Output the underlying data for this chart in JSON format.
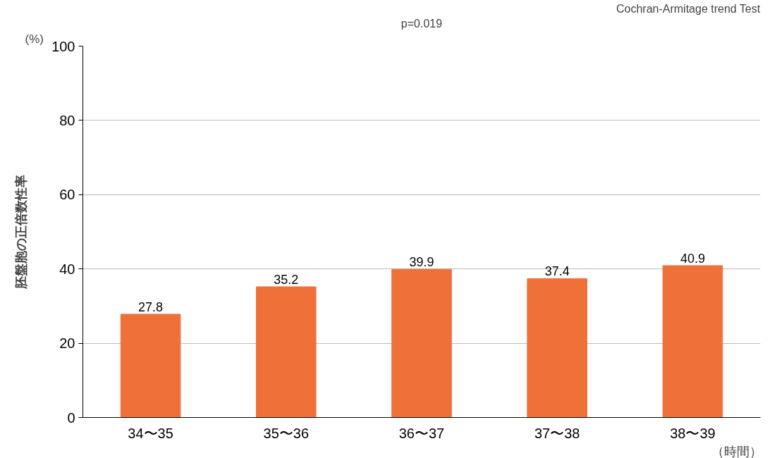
{
  "chart_data": {
    "type": "bar",
    "categories": [
      "34〜35",
      "35〜36",
      "36〜37",
      "37〜38",
      "38〜39"
    ],
    "values": [
      27.8,
      35.2,
      39.9,
      37.4,
      40.9
    ],
    "color": "#f0703a",
    "ylabel": "胚盤胞の正倍数性率",
    "xlabel": "（時間）",
    "annotations": [
      "(%)",
      "p=0.019",
      "Cochran-Armitage trend Test"
    ],
    "ylim": [
      0,
      100
    ],
    "yticks": [
      0,
      20,
      40,
      60,
      80,
      100
    ],
    "grid": "y",
    "data_labels": true
  }
}
